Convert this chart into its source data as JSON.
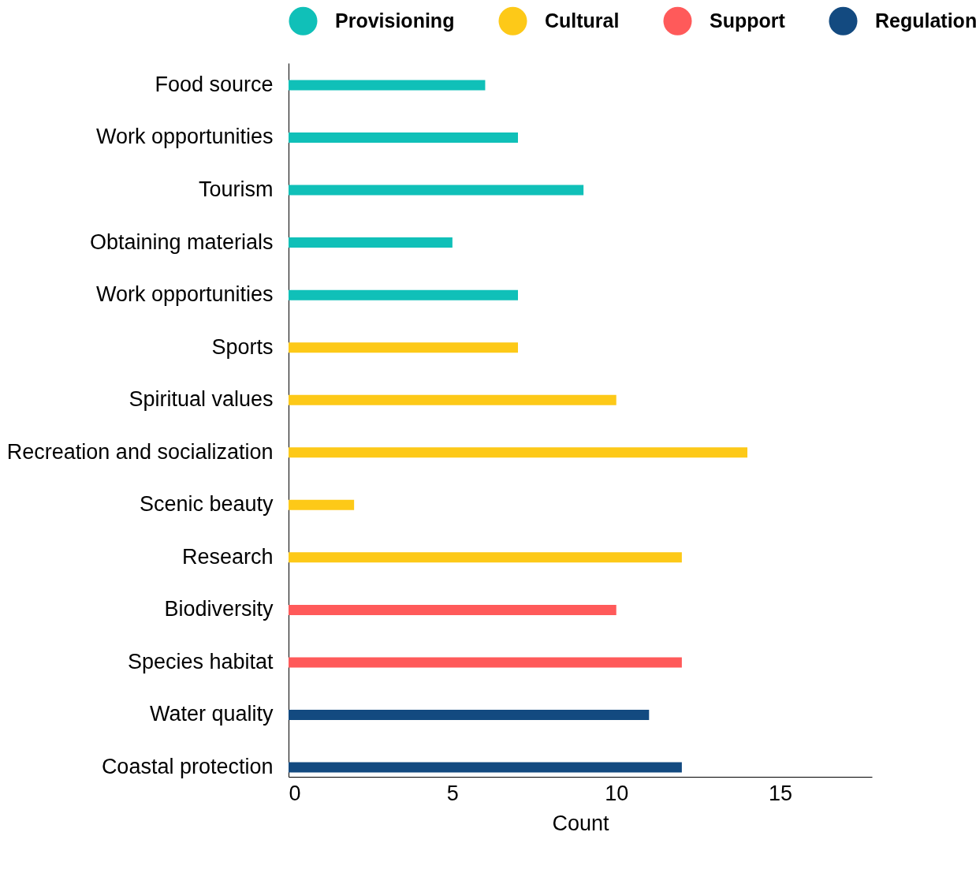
{
  "chart_data": {
    "type": "bar",
    "orientation": "horizontal",
    "xlabel": "Count",
    "legend": "top",
    "grid": false,
    "categories": [
      "Food source",
      "Work opportunities",
      "Tourism",
      "Obtaining materials",
      "Work opportunities",
      "Sports",
      "Spiritual values",
      "Recreation and socialization",
      "Scenic beauty",
      "Research",
      "Biodiversity",
      "Species habitat",
      "Water quality",
      "Coastal protection"
    ],
    "series": [
      {
        "name": "Provisioning",
        "color": "#10c0b8",
        "values": [
          6,
          7,
          9,
          5,
          7,
          null,
          null,
          null,
          null,
          null,
          null,
          null,
          null,
          null
        ]
      },
      {
        "name": "Cultural",
        "color": "#fdc918",
        "values": [
          null,
          null,
          null,
          null,
          null,
          7,
          10,
          14,
          2,
          12,
          null,
          null,
          null,
          null
        ]
      },
      {
        "name": "Support",
        "color": "#ff5a5a",
        "values": [
          null,
          null,
          null,
          null,
          null,
          null,
          null,
          null,
          null,
          null,
          10,
          12,
          null,
          null
        ]
      },
      {
        "name": "Regulation",
        "color": "#134a80",
        "values": [
          null,
          null,
          null,
          null,
          null,
          null,
          null,
          null,
          null,
          null,
          null,
          null,
          11,
          12
        ]
      }
    ],
    "xlim": [
      0,
      17.8
    ],
    "xticks": [
      0,
      5,
      10,
      15
    ]
  }
}
